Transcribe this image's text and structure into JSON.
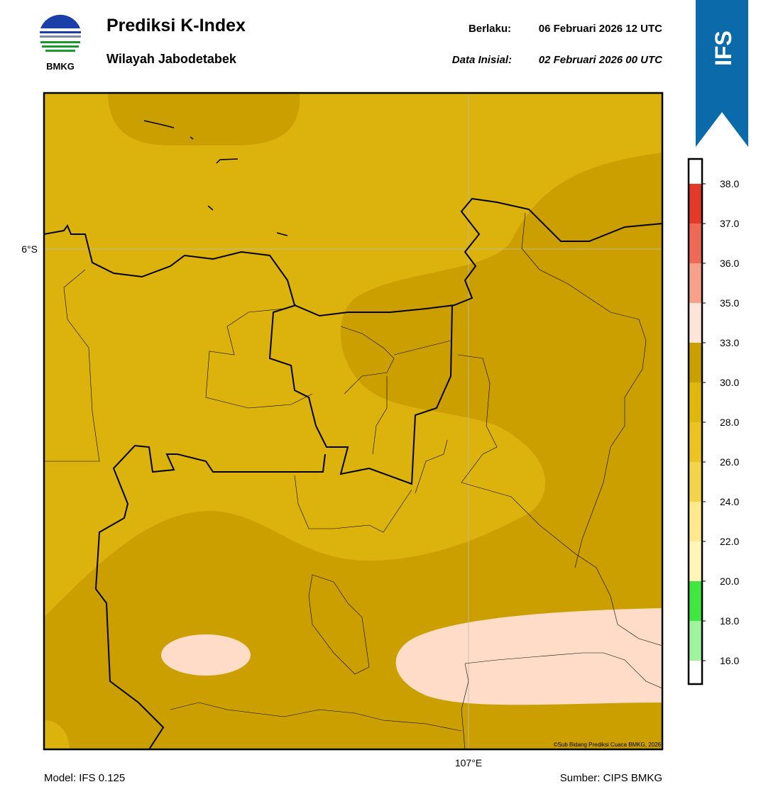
{
  "header": {
    "logo_text": "BMKG",
    "title": "Prediksi K-Index",
    "subtitle": "Wilayah Jabodetabek",
    "valid_label": "Berlaku:",
    "valid_time": "06 Februari 2026 12 UTC",
    "init_label": "Data Inisial:",
    "init_time": "02 Februari 2026 00 UTC",
    "badge": "IFS"
  },
  "map": {
    "lat_label": "6°S",
    "lon_label": "107°E",
    "credit": "©Sub Bidang Prediksi Cuaca BMKG, 2026"
  },
  "colorbar": {
    "ticks": [
      {
        "value": 16,
        "label": "16.0"
      },
      {
        "value": 18,
        "label": "18.0"
      },
      {
        "value": 20,
        "label": "20.0"
      },
      {
        "value": 22,
        "label": "22.0"
      },
      {
        "value": 24,
        "label": "24.0"
      },
      {
        "value": 26,
        "label": "26.0"
      },
      {
        "value": 28,
        "label": "28.0"
      },
      {
        "value": 30,
        "label": "30.0"
      },
      {
        "value": 33,
        "label": "33.0"
      },
      {
        "value": 35,
        "label": "35.0"
      },
      {
        "value": 36,
        "label": "36.0"
      },
      {
        "value": 37,
        "label": "37.0"
      },
      {
        "value": 38,
        "label": "38.0"
      }
    ],
    "colors": [
      "#ffffff",
      "#9ef59e",
      "#3ee83e",
      "#fff5b8",
      "#ffe98a",
      "#f3d34a",
      "#ebc325",
      "#e0b70b",
      "#cc9f00",
      "#ffe4d8",
      "#f7a08a",
      "#ef6a55",
      "#e33a2a"
    ]
  },
  "footer": {
    "model": "Model: IFS 0.125",
    "source": "Sumber: CIPS BMKG"
  }
}
